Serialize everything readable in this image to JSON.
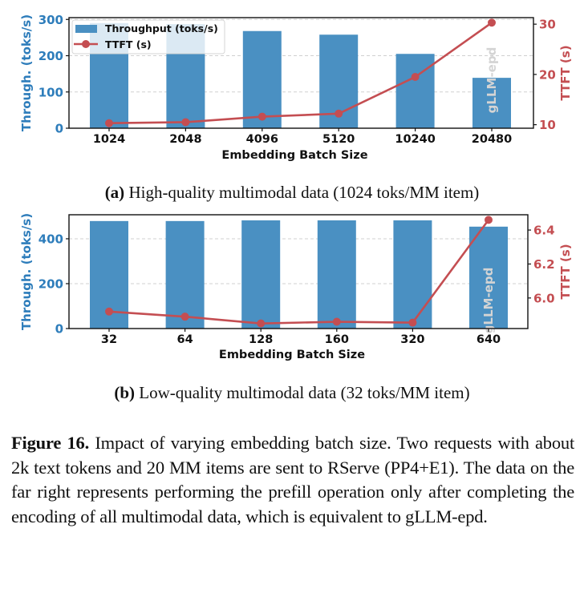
{
  "chart_data": [
    {
      "id": "a",
      "type": "bar+line",
      "subcaption_label": "(a)",
      "subcaption_text": "High-quality multimodal data (1024 toks/MM item)",
      "xlabel": "Embedding Batch Size",
      "ylabel_left": "Through. (toks/s)",
      "ylabel_right": "TTFT (s)",
      "categories": [
        "1024",
        "2048",
        "4096",
        "5120",
        "10240",
        "20480"
      ],
      "series": [
        {
          "name": "Throughput (toks/s)",
          "type": "bar",
          "axis": "left",
          "color": "#4a90c2",
          "values": [
            290,
            287,
            268,
            258,
            205,
            139
          ]
        },
        {
          "name": "TTFT (s)",
          "type": "line",
          "axis": "right",
          "color": "#c44e52",
          "values": [
            10.3,
            10.5,
            11.6,
            12.2,
            19.5,
            30.3
          ]
        }
      ],
      "ylim_left": [
        0,
        305
      ],
      "yticks_left": [
        0,
        100,
        200,
        300
      ],
      "ylim_right": [
        9.3,
        31.3
      ],
      "yticks_right": [
        10,
        20,
        30
      ],
      "grid": true,
      "legend": {
        "placement": "top-left",
        "entries": [
          "Throughput (toks/s)",
          "TTFT (s)"
        ]
      },
      "annotation": {
        "text": "gLLM-epd",
        "category": "20480"
      }
    },
    {
      "id": "b",
      "type": "bar+line",
      "subcaption_label": "(b)",
      "subcaption_text": "Low-quality multimodal data (32 toks/MM item)",
      "xlabel": "Embedding Batch Size",
      "ylabel_left": "Through. (toks/s)",
      "ylabel_right": "TTFT (s)",
      "categories": [
        "32",
        "64",
        "128",
        "160",
        "320",
        "640"
      ],
      "series": [
        {
          "name": "Throughput (toks/s)",
          "type": "bar",
          "axis": "left",
          "color": "#4a90c2",
          "values": [
            479,
            479,
            482,
            482,
            482,
            454
          ]
        },
        {
          "name": "TTFT (s)",
          "type": "line",
          "axis": "right",
          "color": "#c44e52",
          "values": [
            5.92,
            5.89,
            5.85,
            5.86,
            5.855,
            6.46
          ]
        }
      ],
      "ylim_left": [
        0,
        507
      ],
      "yticks_left": [
        0,
        200,
        400
      ],
      "ylim_right": [
        5.82,
        6.49
      ],
      "yticks_right": [
        "6.0",
        "6.2",
        "6.4"
      ],
      "grid": true,
      "legend": null,
      "annotation": {
        "text": "gLLM-epd",
        "category": "640"
      }
    }
  ],
  "caption": {
    "label": "Figure 16.",
    "text": "Impact of varying embedding batch size. Two requests with about 2k text tokens and 20 MM items are sent to RServe (PP4+E1). The data on the far right represents performing the prefill operation only after completing the encoding of all multimodal data, which is equivalent to gLLM-epd."
  }
}
